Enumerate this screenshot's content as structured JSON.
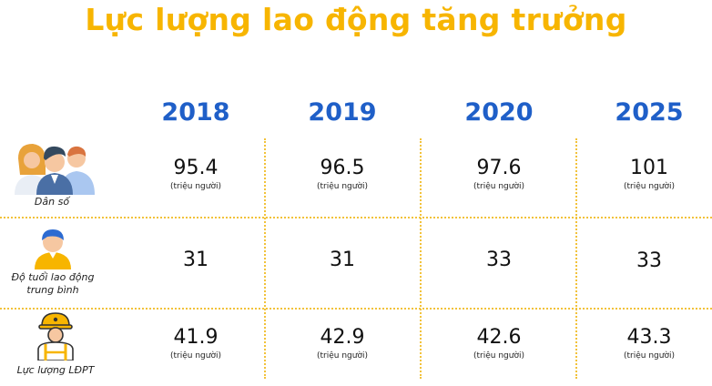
{
  "title": "Lực lượng lao động tăng trưởng",
  "years": [
    "2018",
    "2019",
    "2020",
    "2025"
  ],
  "rows": [
    {
      "label": "Dân số",
      "icon": "people-group-icon",
      "values": [
        "95.4",
        "96.5",
        "97.6",
        "101"
      ],
      "unit": "(triệu người)"
    },
    {
      "label_line1": "Độ tuổi lao động",
      "label_line2": "trung bình",
      "icon": "worker-person-icon",
      "values": [
        "31",
        "31",
        "33",
        "33"
      ]
    },
    {
      "label": "Lực lượng LĐPT",
      "icon": "construction-worker-icon",
      "values": [
        "41.9",
        "42.9",
        "42.6",
        "43.3"
      ],
      "unit": "(triệu người)"
    }
  ],
  "colors": {
    "title": "#f7b500",
    "year": "#1f5fc8",
    "divider": "#f2c23a"
  }
}
